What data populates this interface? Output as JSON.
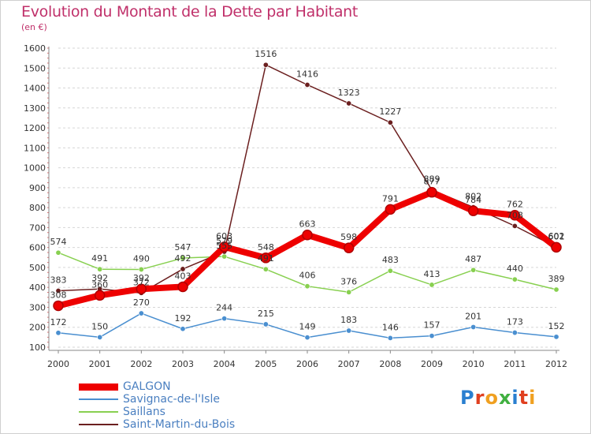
{
  "title": "Evolution du Montant de la Dette par Habitant",
  "subtitle": "(en €)",
  "logo_text": "Proxiti",
  "colors": {
    "title": "#c0306a",
    "grid": "#d6d6d6",
    "axis_text": "#333333",
    "legend_text": "#4a7fc0"
  },
  "chart_data": {
    "type": "line",
    "x": [
      "2000",
      "2001",
      "2002",
      "2003",
      "2004",
      "2005",
      "2006",
      "2007",
      "2008",
      "2009",
      "2010",
      "2011",
      "2012"
    ],
    "ylim": [
      100,
      1600
    ],
    "yticks": [
      100,
      200,
      300,
      400,
      500,
      600,
      700,
      800,
      900,
      1000,
      1100,
      1200,
      1300,
      1400,
      1500,
      1600
    ],
    "grid": "horizontal dashed",
    "legend_position": "bottom-left",
    "series": [
      {
        "name": "GALGON",
        "color": "#ee0000",
        "thick": true,
        "values": [
          308,
          360,
          392,
          403,
          603,
          548,
          663,
          598,
          791,
          877,
          784,
          762,
          601
        ]
      },
      {
        "name": "Savignac-de-l'Isle",
        "color": "#4a8fd0",
        "thick": false,
        "values": [
          172,
          150,
          270,
          192,
          244,
          215,
          149,
          183,
          146,
          157,
          201,
          173,
          152
        ]
      },
      {
        "name": "Saillans",
        "color": "#88d050",
        "thick": false,
        "values": [
          574,
          491,
          490,
          547,
          555,
          491,
          406,
          376,
          483,
          413,
          487,
          440,
          389
        ]
      },
      {
        "name": "Saint-Martin-du-Bois",
        "color": "#6b1f1f",
        "thick": false,
        "values": [
          383,
          392,
          372,
          492,
          579,
          1516,
          1416,
          1323,
          1227,
          889,
          802,
          708,
          602
        ]
      }
    ]
  }
}
